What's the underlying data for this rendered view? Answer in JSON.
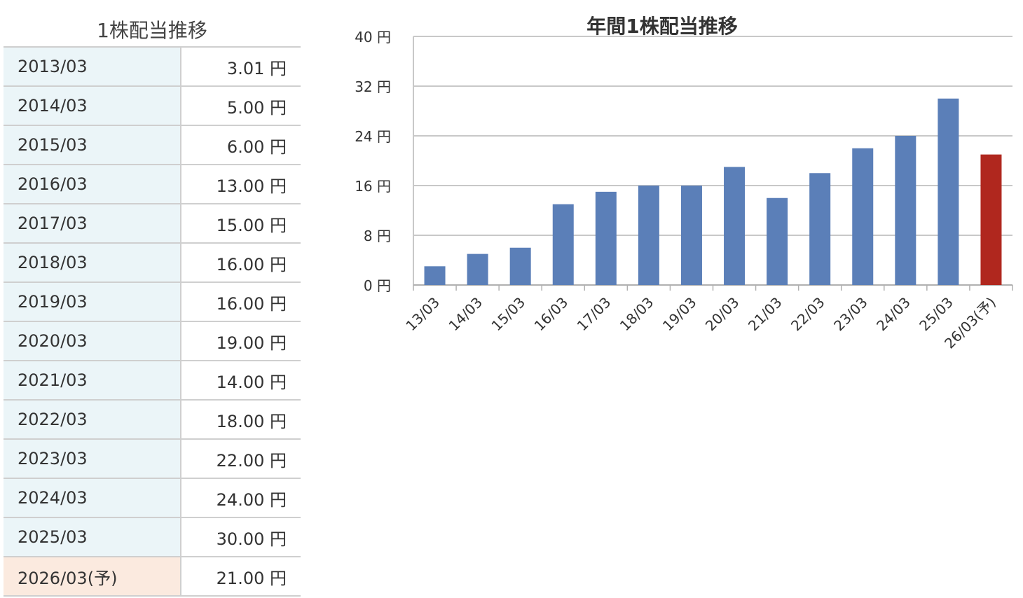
{
  "table": {
    "title": "1株配当推移",
    "rows": [
      {
        "period": "2013/03",
        "amount": "3.01 円"
      },
      {
        "period": "2014/03",
        "amount": "5.00 円"
      },
      {
        "period": "2015/03",
        "amount": "6.00 円"
      },
      {
        "period": "2016/03",
        "amount": "13.00 円"
      },
      {
        "period": "2017/03",
        "amount": "15.00 円"
      },
      {
        "period": "2018/03",
        "amount": "16.00 円"
      },
      {
        "period": "2019/03",
        "amount": "16.00 円"
      },
      {
        "period": "2020/03",
        "amount": "19.00 円"
      },
      {
        "period": "2021/03",
        "amount": "14.00 円"
      },
      {
        "period": "2022/03",
        "amount": "18.00 円"
      },
      {
        "period": "2023/03",
        "amount": "22.00 円"
      },
      {
        "period": "2024/03",
        "amount": "24.00 円"
      },
      {
        "period": "2025/03",
        "amount": "30.00 円"
      },
      {
        "period": "2026/03(予)",
        "amount": "21.00 円"
      }
    ]
  },
  "chart_data": {
    "type": "bar",
    "title": "年間1株配当推移",
    "xlabel": "",
    "ylabel": "",
    "categories": [
      "13/03",
      "14/03",
      "15/03",
      "16/03",
      "17/03",
      "18/03",
      "19/03",
      "20/03",
      "21/03",
      "22/03",
      "23/03",
      "24/03",
      "25/03",
      "26/03(予)"
    ],
    "values": [
      3.01,
      5,
      6,
      13,
      15,
      16,
      16,
      19,
      14,
      18,
      22,
      24,
      30,
      21
    ],
    "ylim": [
      0,
      40
    ],
    "yticks": [
      0,
      8,
      16,
      24,
      32,
      40
    ],
    "ytick_suffix": " 円",
    "grid": true,
    "legend": "none",
    "colors": {
      "actual": "#5b7fb8",
      "forecast": "#b0271e"
    },
    "forecast_index": 13
  }
}
